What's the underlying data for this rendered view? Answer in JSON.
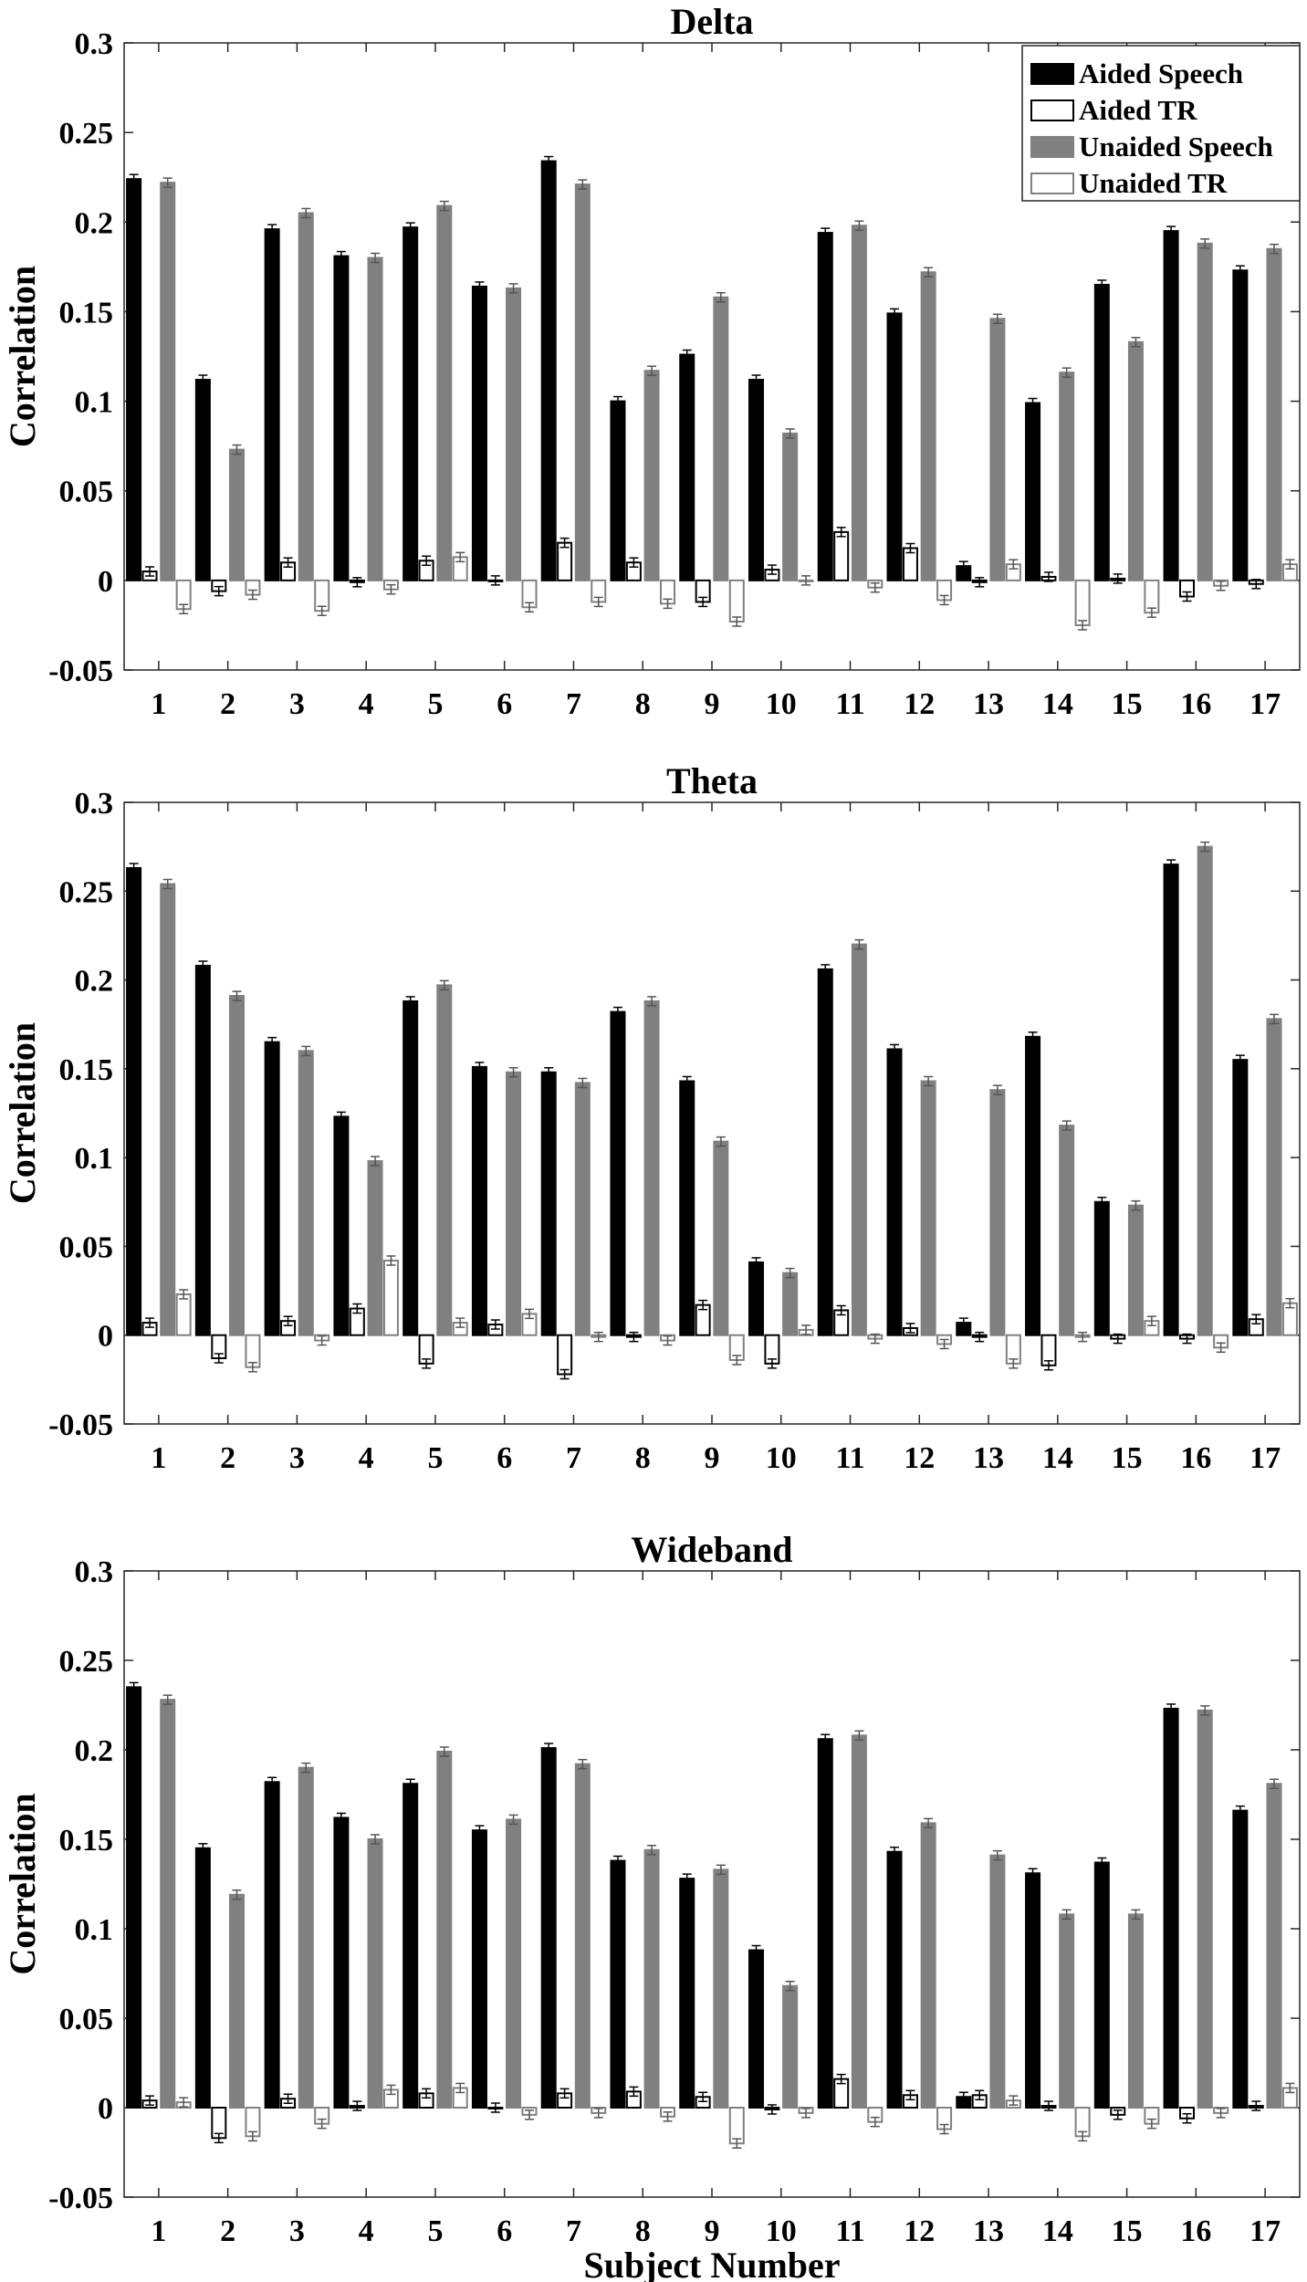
{
  "chart_data": [
    {
      "type": "bar",
      "title": "Delta",
      "xlabel": "",
      "ylabel": "Correlation",
      "ylim": [
        -0.05,
        0.3
      ],
      "yticks": [
        "0.3",
        "0.25",
        "0.2",
        "0.15",
        "0.1",
        "0.05",
        "0",
        "-0.05"
      ],
      "categories": [
        "1",
        "2",
        "3",
        "4",
        "5",
        "6",
        "7",
        "8",
        "9",
        "10",
        "11",
        "12",
        "13",
        "14",
        "15",
        "16",
        "17"
      ],
      "series": [
        {
          "name": "Aided Speech",
          "values": [
            0.224,
            0.112,
            0.196,
            0.181,
            0.197,
            0.164,
            0.234,
            0.1,
            0.126,
            0.112,
            0.194,
            0.149,
            0.008,
            0.099,
            0.165,
            0.195,
            0.173
          ]
        },
        {
          "name": "Aided TR",
          "values": [
            0.005,
            -0.006,
            0.01,
            -0.001,
            0.011,
            0.0,
            0.021,
            0.01,
            -0.012,
            0.006,
            0.027,
            0.018,
            -0.001,
            0.002,
            0.001,
            -0.009,
            -0.002
          ]
        },
        {
          "name": "Unaided Speech",
          "values": [
            0.222,
            0.073,
            0.205,
            0.18,
            0.209,
            0.163,
            0.221,
            0.117,
            0.158,
            0.082,
            0.198,
            0.172,
            0.146,
            0.116,
            0.133,
            0.188,
            0.185
          ]
        },
        {
          "name": "Unaided TR",
          "values": [
            -0.016,
            -0.008,
            -0.017,
            -0.005,
            0.013,
            -0.015,
            -0.012,
            -0.013,
            -0.023,
            0.0,
            -0.004,
            -0.011,
            0.009,
            -0.025,
            -0.018,
            -0.003,
            0.009
          ]
        }
      ],
      "legend": {
        "position": "top-right"
      }
    },
    {
      "type": "bar",
      "title": "Theta",
      "xlabel": "",
      "ylabel": "Correlation",
      "ylim": [
        -0.05,
        0.3
      ],
      "yticks": [
        "0.3",
        "0.25",
        "0.2",
        "0.15",
        "0.1",
        "0.05",
        "0",
        "-0.05"
      ],
      "categories": [
        "1",
        "2",
        "3",
        "4",
        "5",
        "6",
        "7",
        "8",
        "9",
        "10",
        "11",
        "12",
        "13",
        "14",
        "15",
        "16",
        "17"
      ],
      "series": [
        {
          "name": "Aided Speech",
          "values": [
            0.263,
            0.208,
            0.165,
            0.123,
            0.188,
            0.151,
            0.148,
            0.182,
            0.143,
            0.041,
            0.206,
            0.161,
            0.007,
            0.168,
            0.075,
            0.265,
            0.155
          ]
        },
        {
          "name": "Aided TR",
          "values": [
            0.007,
            -0.013,
            0.008,
            0.015,
            -0.016,
            0.006,
            -0.022,
            -0.001,
            0.017,
            -0.016,
            0.014,
            0.004,
            -0.001,
            -0.017,
            -0.002,
            -0.002,
            0.009
          ]
        },
        {
          "name": "Unaided Speech",
          "values": [
            0.254,
            0.191,
            0.16,
            0.098,
            0.197,
            0.148,
            0.142,
            0.188,
            0.109,
            0.035,
            0.22,
            0.143,
            0.138,
            0.118,
            0.073,
            0.275,
            0.178
          ]
        },
        {
          "name": "Unaided TR",
          "values": [
            0.023,
            -0.018,
            -0.003,
            0.042,
            0.007,
            0.012,
            -0.001,
            -0.003,
            -0.014,
            0.003,
            -0.002,
            -0.005,
            -0.016,
            -0.001,
            0.008,
            -0.007,
            0.018
          ]
        }
      ]
    },
    {
      "type": "bar",
      "title": "Wideband",
      "xlabel": "Subject Number",
      "ylabel": "Correlation",
      "ylim": [
        -0.05,
        0.3
      ],
      "yticks": [
        "0.3",
        "0.25",
        "0.2",
        "0.15",
        "0.1",
        "0.05",
        "0",
        "-0.05"
      ],
      "categories": [
        "1",
        "2",
        "3",
        "4",
        "5",
        "6",
        "7",
        "8",
        "9",
        "10",
        "11",
        "12",
        "13",
        "14",
        "15",
        "16",
        "17"
      ],
      "series": [
        {
          "name": "Aided Speech",
          "values": [
            0.235,
            0.145,
            0.182,
            0.162,
            0.181,
            0.155,
            0.201,
            0.138,
            0.128,
            0.088,
            0.206,
            0.143,
            0.006,
            0.131,
            0.137,
            0.223,
            0.166
          ]
        },
        {
          "name": "Aided TR",
          "values": [
            0.004,
            -0.017,
            0.005,
            0.001,
            0.008,
            0.0,
            0.008,
            0.009,
            0.006,
            -0.001,
            0.016,
            0.007,
            0.007,
            0.001,
            -0.004,
            -0.006,
            0.001
          ]
        },
        {
          "name": "Unaided Speech",
          "values": [
            0.228,
            0.119,
            0.19,
            0.15,
            0.199,
            0.161,
            0.192,
            0.144,
            0.133,
            0.068,
            0.208,
            0.159,
            0.141,
            0.108,
            0.108,
            0.222,
            0.181
          ]
        },
        {
          "name": "Unaided TR",
          "values": [
            0.003,
            -0.016,
            -0.009,
            0.01,
            0.011,
            -0.004,
            -0.003,
            -0.005,
            -0.02,
            -0.003,
            -0.008,
            -0.012,
            0.004,
            -0.016,
            -0.009,
            -0.003,
            0.011
          ]
        }
      ]
    }
  ],
  "colors": {
    "aided_speech": "#000000",
    "aided_tr": "#ffffff",
    "unaided_speech": "#808080",
    "unaided_tr": "#ffffff",
    "axis": "#262626",
    "grid_tick": "#262626"
  }
}
